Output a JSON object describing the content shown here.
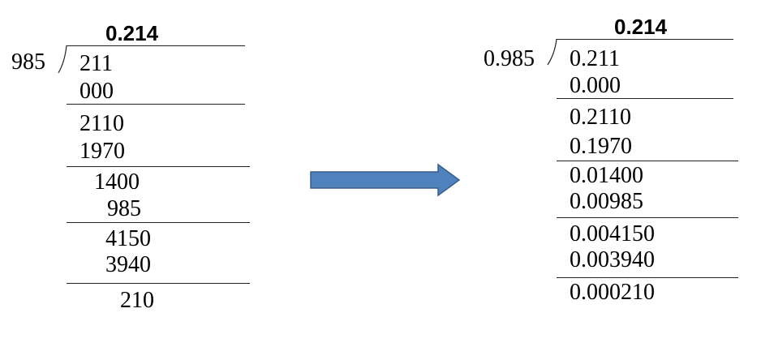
{
  "left": {
    "quotient": "0.214",
    "divisor": "985",
    "rows": [
      "211",
      "000",
      "2110",
      "1970",
      "1400",
      "985",
      "4150",
      "3940",
      "210"
    ]
  },
  "right": {
    "quotient": "0.214",
    "divisor": "0.985",
    "rows": [
      "0.211",
      "0.000",
      "0.2110",
      "0.1970",
      "0.01400",
      "0.00985",
      "0.004150",
      "0.003940",
      "0.000210"
    ]
  },
  "colors": {
    "arrow_fill": "#4f81bd",
    "arrow_stroke": "#385d8a"
  }
}
